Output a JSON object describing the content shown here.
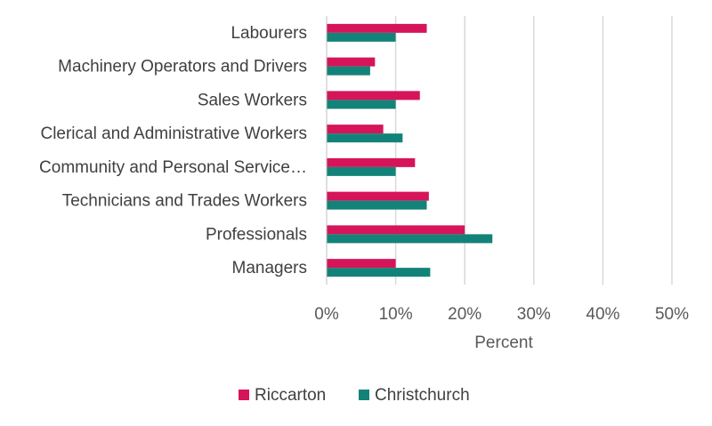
{
  "chart_data": {
    "type": "bar",
    "orientation": "horizontal",
    "categories": [
      "Labourers",
      "Machinery Operators and Drivers",
      "Sales Workers",
      "Clerical and Administrative Workers",
      "Community and Personal Service…",
      "Technicians and Trades Workers",
      "Professionals",
      "Managers"
    ],
    "series": [
      {
        "name": "Riccarton",
        "color": "#d6145a",
        "values": [
          14.5,
          7.0,
          13.5,
          8.2,
          12.8,
          14.8,
          20.0,
          10.0
        ]
      },
      {
        "name": "Christchurch",
        "color": "#138379",
        "values": [
          10.0,
          6.3,
          10.0,
          11.0,
          10.0,
          14.5,
          24.0,
          15.0
        ]
      }
    ],
    "xlabel": "Percent",
    "ylabel": "",
    "title": "",
    "xlim": [
      0,
      50
    ],
    "xticks": [
      0,
      10,
      20,
      30,
      40,
      50
    ],
    "xtick_labels": [
      "0%",
      "10%",
      "20%",
      "30%",
      "40%",
      "50%"
    ],
    "grid": "vertical",
    "legend": "bottom"
  }
}
